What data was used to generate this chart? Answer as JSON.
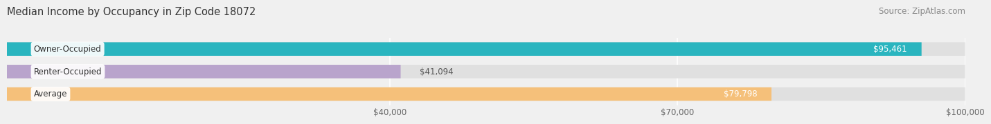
{
  "title": "Median Income by Occupancy in Zip Code 18072",
  "source": "Source: ZipAtlas.com",
  "categories": [
    "Owner-Occupied",
    "Renter-Occupied",
    "Average"
  ],
  "values": [
    95461,
    41094,
    79798
  ],
  "bar_colors": [
    "#2ab5bf",
    "#b9a4cc",
    "#f5c07a"
  ],
  "bar_labels": [
    "$95,461",
    "$41,094",
    "$79,798"
  ],
  "label_inside": [
    true,
    false,
    true
  ],
  "xlim": [
    0,
    100000
  ],
  "xticks": [
    40000,
    70000,
    100000
  ],
  "xtick_labels": [
    "$40,000",
    "$70,000",
    "$100,000"
  ],
  "background_color": "#f0f0f0",
  "bar_bg_color": "#e0e0e0",
  "title_fontsize": 10.5,
  "source_fontsize": 8.5,
  "label_fontsize": 8.5,
  "category_fontsize": 8.5,
  "tick_fontsize": 8.5
}
